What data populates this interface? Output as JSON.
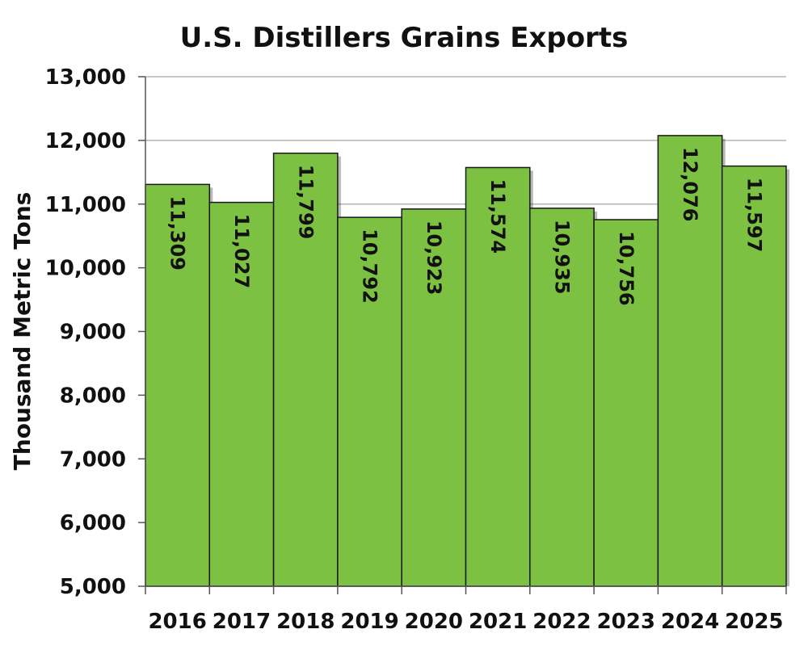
{
  "chart_data": {
    "type": "bar",
    "title": "U.S. Distillers Grains Exports",
    "xlabel": "",
    "ylabel": "Thousand Metric Tons",
    "categories": [
      "2016",
      "2017",
      "2018",
      "2019",
      "2020",
      "2021",
      "2022",
      "2023",
      "2024",
      "2025"
    ],
    "values": [
      11309,
      11027,
      11799,
      10792,
      10923,
      11574,
      10935,
      10756,
      12076,
      11597
    ],
    "value_labels": [
      "11,309",
      "11,027",
      "11,799",
      "10,792",
      "10,923",
      "11,574",
      "10,935",
      "10,756",
      "12,076",
      "11,597"
    ],
    "ylim": [
      5000,
      13000
    ],
    "yticks": [
      5000,
      6000,
      7000,
      8000,
      9000,
      10000,
      11000,
      12000,
      13000
    ],
    "ytick_labels": [
      "5,000",
      "6,000",
      "7,000",
      "8,000",
      "9,000",
      "10,000",
      "11,000",
      "12,000",
      "13,000"
    ],
    "grid": true,
    "legend": "none",
    "bar_color": "#7dc142",
    "bar_edge_color": "#1a1a1a",
    "grid_color": "#b5b5b5"
  }
}
